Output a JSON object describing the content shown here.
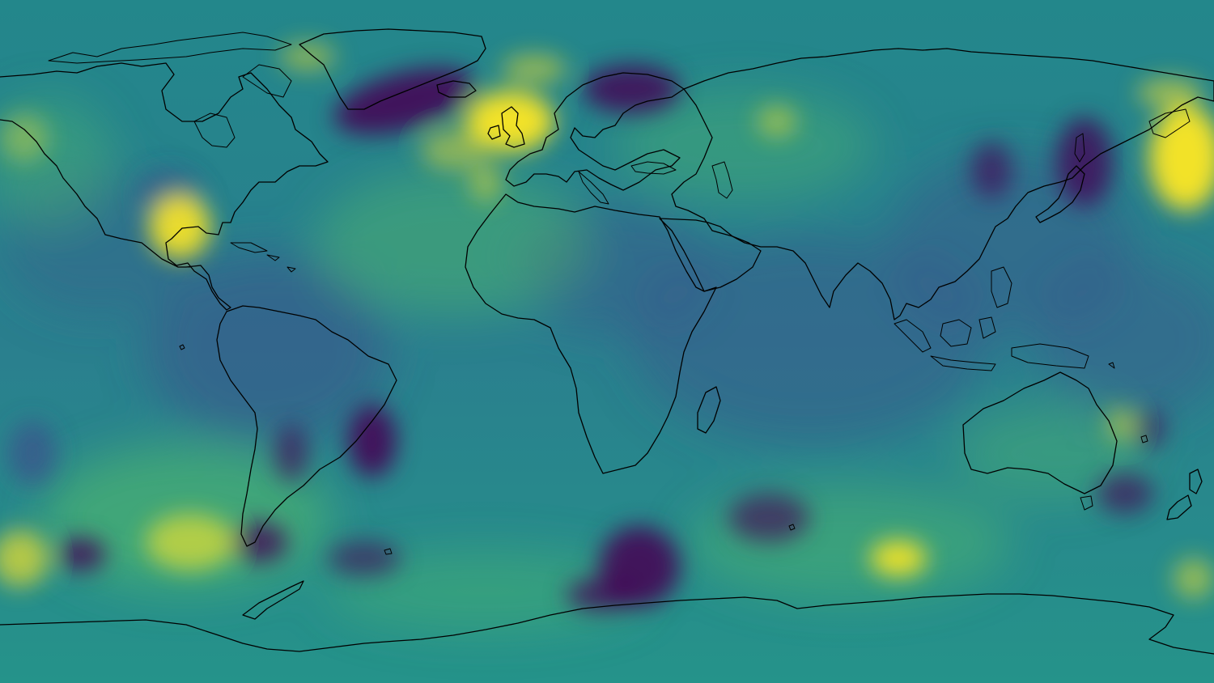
{
  "map": {
    "projection": "equirectangular",
    "basemap": "coastlines",
    "colormap": {
      "name": "viridis",
      "stops": [
        "#440154",
        "#3b528b",
        "#21918c",
        "#5ec962",
        "#fde725"
      ],
      "background": "#2a8c8a"
    },
    "coastline_color": "#000000",
    "features": [
      "north-america",
      "south-america",
      "greenland",
      "iceland",
      "africa",
      "europe",
      "asia",
      "arabian-peninsula",
      "india",
      "southeast-asia",
      "japan",
      "australia",
      "new-zealand",
      "madagascar",
      "british-isles",
      "scandinavia",
      "antarctica"
    ]
  }
}
